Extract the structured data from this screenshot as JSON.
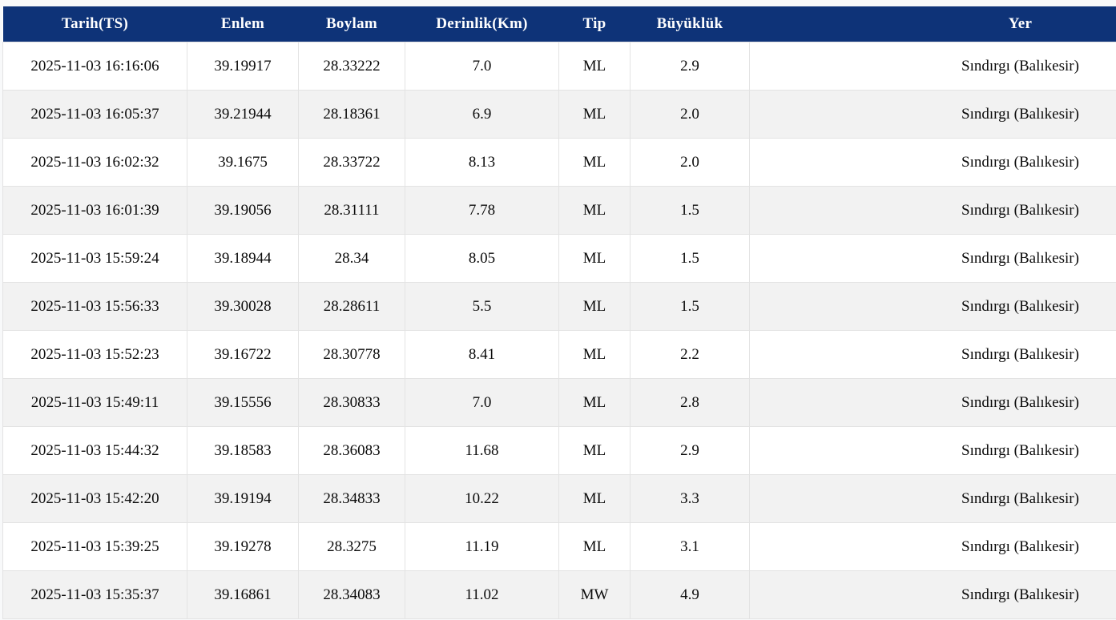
{
  "table": {
    "columns": [
      {
        "key": "tarih",
        "label": "Tarih(TS)"
      },
      {
        "key": "enlem",
        "label": "Enlem"
      },
      {
        "key": "boylam",
        "label": "Boylam"
      },
      {
        "key": "derinlik",
        "label": "Derinlik(Km)"
      },
      {
        "key": "tip",
        "label": "Tip"
      },
      {
        "key": "buyukluk",
        "label": "Büyüklük"
      },
      {
        "key": "yer",
        "label": "Yer"
      }
    ],
    "rows": [
      {
        "tarih": "2025-11-03 16:16:06",
        "enlem": "39.19917",
        "boylam": "28.33222",
        "derinlik": "7.0",
        "tip": "ML",
        "buyukluk": "2.9",
        "yer": "Sındırgı (Balıkesir)"
      },
      {
        "tarih": "2025-11-03 16:05:37",
        "enlem": "39.21944",
        "boylam": "28.18361",
        "derinlik": "6.9",
        "tip": "ML",
        "buyukluk": "2.0",
        "yer": "Sındırgı (Balıkesir)"
      },
      {
        "tarih": "2025-11-03 16:02:32",
        "enlem": "39.1675",
        "boylam": "28.33722",
        "derinlik": "8.13",
        "tip": "ML",
        "buyukluk": "2.0",
        "yer": "Sındırgı (Balıkesir)"
      },
      {
        "tarih": "2025-11-03 16:01:39",
        "enlem": "39.19056",
        "boylam": "28.31111",
        "derinlik": "7.78",
        "tip": "ML",
        "buyukluk": "1.5",
        "yer": "Sındırgı (Balıkesir)"
      },
      {
        "tarih": "2025-11-03 15:59:24",
        "enlem": "39.18944",
        "boylam": "28.34",
        "derinlik": "8.05",
        "tip": "ML",
        "buyukluk": "1.5",
        "yer": "Sındırgı (Balıkesir)"
      },
      {
        "tarih": "2025-11-03 15:56:33",
        "enlem": "39.30028",
        "boylam": "28.28611",
        "derinlik": "5.5",
        "tip": "ML",
        "buyukluk": "1.5",
        "yer": "Sındırgı (Balıkesir)"
      },
      {
        "tarih": "2025-11-03 15:52:23",
        "enlem": "39.16722",
        "boylam": "28.30778",
        "derinlik": "8.41",
        "tip": "ML",
        "buyukluk": "2.2",
        "yer": "Sındırgı (Balıkesir)"
      },
      {
        "tarih": "2025-11-03 15:49:11",
        "enlem": "39.15556",
        "boylam": "28.30833",
        "derinlik": "7.0",
        "tip": "ML",
        "buyukluk": "2.8",
        "yer": "Sındırgı (Balıkesir)"
      },
      {
        "tarih": "2025-11-03 15:44:32",
        "enlem": "39.18583",
        "boylam": "28.36083",
        "derinlik": "11.68",
        "tip": "ML",
        "buyukluk": "2.9",
        "yer": "Sındırgı (Balıkesir)"
      },
      {
        "tarih": "2025-11-03 15:42:20",
        "enlem": "39.19194",
        "boylam": "28.34833",
        "derinlik": "10.22",
        "tip": "ML",
        "buyukluk": "3.3",
        "yer": "Sındırgı (Balıkesir)"
      },
      {
        "tarih": "2025-11-03 15:39:25",
        "enlem": "39.19278",
        "boylam": "28.3275",
        "derinlik": "11.19",
        "tip": "ML",
        "buyukluk": "3.1",
        "yer": "Sındırgı (Balıkesir)"
      },
      {
        "tarih": "2025-11-03 15:35:37",
        "enlem": "39.16861",
        "boylam": "28.34083",
        "derinlik": "11.02",
        "tip": "MW",
        "buyukluk": "4.9",
        "yer": "Sındırgı (Balıkesir)"
      }
    ]
  },
  "colors": {
    "header_bg": "#0e3378",
    "header_text": "#ffffff",
    "row_bg": "#ffffff",
    "row_alt_bg": "#f2f2f2",
    "border": "#e3e3e3",
    "page_bg": "#f8f9fa"
  }
}
